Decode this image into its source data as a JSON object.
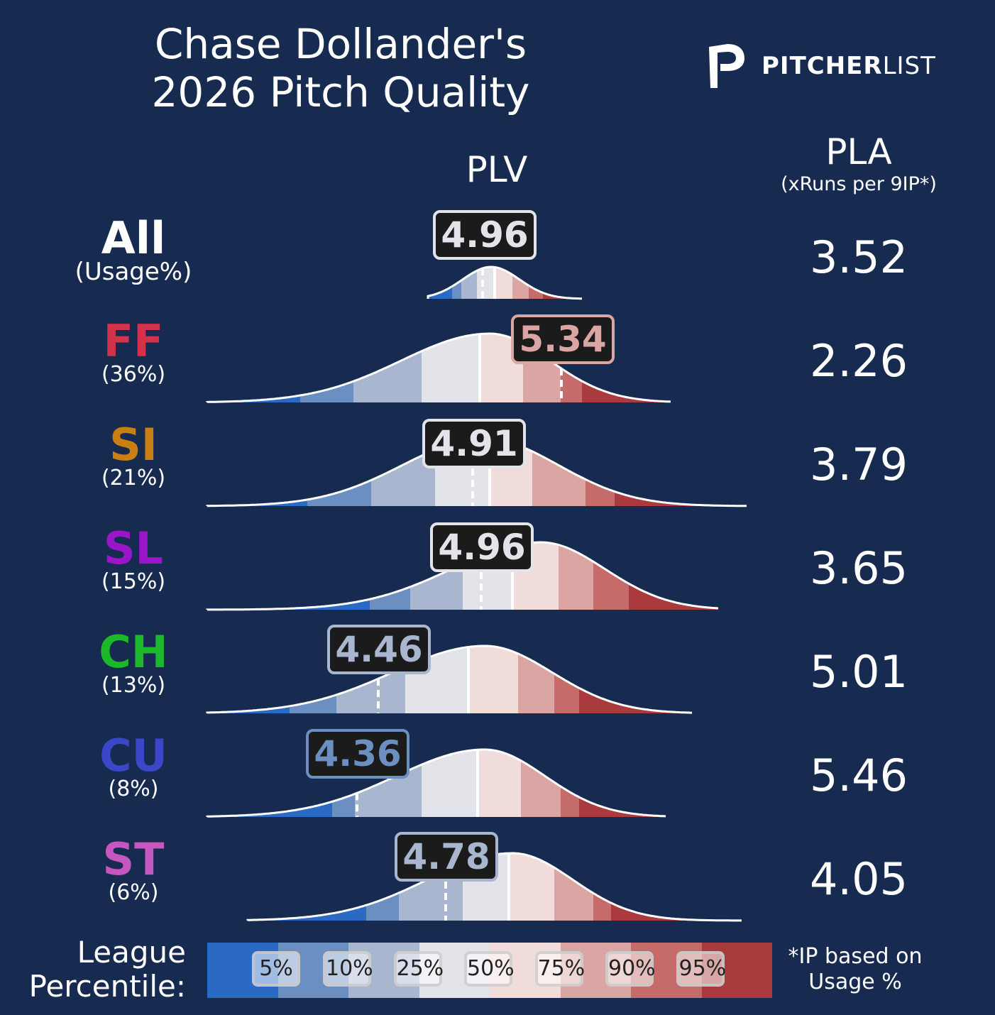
{
  "title_line1": "Chase Dollander's",
  "title_line2": "2026 Pitch Quality",
  "logo": {
    "bold": "PITCHER",
    "light": "LIST"
  },
  "headers": {
    "plv": "PLV",
    "pla": "PLA",
    "pla_sub": "(xRuns per 9IP*)"
  },
  "colors": {
    "background": "#172a50",
    "bands": [
      "#2a6ac4",
      "#6b8fc0",
      "#a8b6d0",
      "#e2e4ea",
      "#f1dcdc",
      "#dba5a3",
      "#c56b6a",
      "#a93a3d"
    ]
  },
  "chart_data": {
    "type": "density",
    "x_label": "PLV",
    "rows": [
      {
        "pitch": "All",
        "usage": "(Usage%)",
        "plv": "4.96",
        "pla": "3.52",
        "color": "#ffffff",
        "label_color": "#e2e4ea"
      },
      {
        "pitch": "FF",
        "usage": "(36%)",
        "plv": "5.34",
        "pla": "2.26",
        "color": "#d3324a",
        "label_color": "#dba5a3"
      },
      {
        "pitch": "SI",
        "usage": "(21%)",
        "plv": "4.91",
        "pla": "3.79",
        "color": "#c97f12",
        "label_color": "#e2e4ea"
      },
      {
        "pitch": "SL",
        "usage": "(15%)",
        "plv": "4.96",
        "pla": "3.65",
        "color": "#9a16c8",
        "label_color": "#e2e4ea"
      },
      {
        "pitch": "CH",
        "usage": "(13%)",
        "plv": "4.46",
        "pla": "5.01",
        "color": "#1bb82a",
        "label_color": "#a8b6d0"
      },
      {
        "pitch": "CU",
        "usage": "(8%)",
        "plv": "4.36",
        "pla": "5.46",
        "color": "#3b46c8",
        "label_color": "#6b8fc0"
      },
      {
        "pitch": "ST",
        "usage": "(6%)",
        "plv": "4.78",
        "pla": "4.05",
        "color": "#c757c0",
        "label_color": "#a8b6d0"
      }
    ]
  },
  "legend": {
    "label_line1": "League",
    "label_line2": "Percentile:",
    "percentiles": [
      "5%",
      "10%",
      "25%",
      "50%",
      "75%",
      "90%",
      "95%"
    ],
    "footnote_line1": "*IP based on",
    "footnote_line2": "Usage %"
  }
}
